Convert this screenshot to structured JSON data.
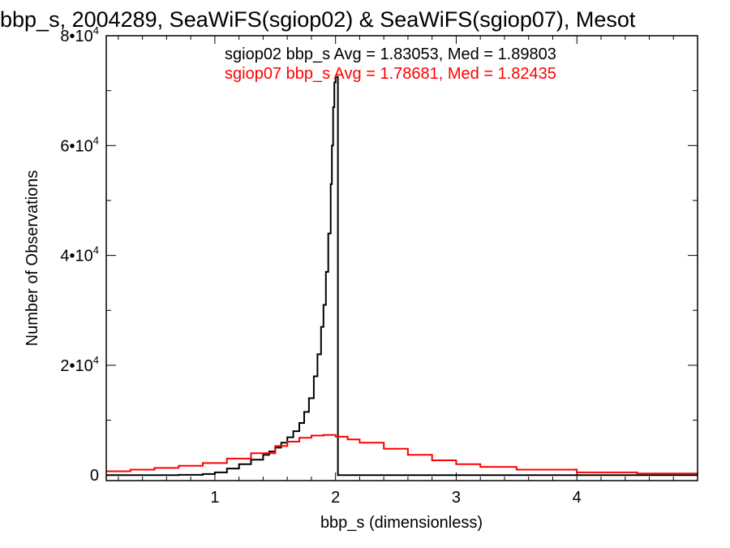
{
  "chart_data": {
    "type": "line",
    "title": "bbp_s, 2004289, SeaWiFS(sgiop02) & SeaWiFS(sgiop07), Mesot",
    "xlabel": "bbp_s (dimensionless)",
    "ylabel": "Number of Observations",
    "xlim": [
      0.1,
      5.0
    ],
    "ylim": [
      -1000,
      80000
    ],
    "x_ticks": [
      {
        "value": 1,
        "label": "1"
      },
      {
        "value": 2,
        "label": "2"
      },
      {
        "value": 3,
        "label": "3"
      },
      {
        "value": 4,
        "label": "4"
      }
    ],
    "y_ticks": [
      {
        "value": 0,
        "mantissa": "0",
        "exp": ""
      },
      {
        "value": 20000,
        "mantissa": "2•10",
        "exp": "4"
      },
      {
        "value": 40000,
        "mantissa": "4•10",
        "exp": "4"
      },
      {
        "value": 60000,
        "mantissa": "6•10",
        "exp": "4"
      },
      {
        "value": 80000,
        "mantissa": "8•10",
        "exp": "4"
      }
    ],
    "annotations": [
      {
        "text": "sgiop02 bbp_s Avg = 1.83053, Med = 1.89803",
        "color": "#000000"
      },
      {
        "text": "sgiop07 bbp_s Avg = 1.78681, Med = 1.82435",
        "color": "#ff0000"
      }
    ],
    "step": true,
    "series": [
      {
        "color": "#000000",
        "x": [
          0.1,
          0.5,
          0.7,
          0.9,
          1.0,
          1.1,
          1.2,
          1.3,
          1.4,
          1.45,
          1.5,
          1.55,
          1.6,
          1.65,
          1.7,
          1.74,
          1.78,
          1.82,
          1.85,
          1.88,
          1.9,
          1.92,
          1.94,
          1.96,
          1.97,
          1.98,
          1.99,
          2.0,
          2.02,
          5.0
        ],
        "y": [
          0,
          0,
          50,
          200,
          500,
          1200,
          2000,
          2800,
          3700,
          4300,
          5000,
          5900,
          6900,
          8000,
          9500,
          11500,
          14000,
          18000,
          22000,
          27000,
          31000,
          37000,
          44000,
          53000,
          60000,
          67000,
          71500,
          72500,
          0,
          0
        ]
      },
      {
        "color": "#ff0000",
        "x": [
          0.1,
          0.3,
          0.5,
          0.7,
          0.9,
          1.1,
          1.3,
          1.5,
          1.6,
          1.7,
          1.8,
          1.9,
          2.0,
          2.1,
          2.2,
          2.4,
          2.6,
          2.8,
          3.0,
          3.2,
          3.5,
          4.0,
          4.5,
          5.0
        ],
        "y": [
          700,
          1000,
          1300,
          1700,
          2200,
          3000,
          4000,
          5300,
          6100,
          6800,
          7200,
          7300,
          7000,
          6500,
          5900,
          4800,
          3700,
          2700,
          2000,
          1500,
          1000,
          500,
          300,
          200
        ]
      }
    ]
  }
}
